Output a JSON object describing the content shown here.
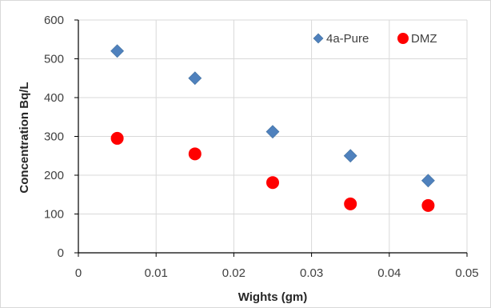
{
  "chart_data": {
    "type": "scatter",
    "xlabel": "Wights (gm)",
    "ylabel": "Concentration Bq/L",
    "xlim": [
      0,
      0.05
    ],
    "ylim": [
      0,
      600
    ],
    "xticks": [
      "0",
      "0.01",
      "0.02",
      "0.03",
      "0.04",
      "0.05"
    ],
    "yticks": [
      "0",
      "100",
      "200",
      "300",
      "400",
      "500",
      "600"
    ],
    "xtick_values": [
      0,
      0.01,
      0.02,
      0.03,
      0.04,
      0.05
    ],
    "ytick_values": [
      0,
      100,
      200,
      300,
      400,
      500,
      600
    ],
    "grid": true,
    "legend_position": "top-right",
    "series": [
      {
        "name": "4a-Pure",
        "marker": "diamond",
        "color": "#4f81bd",
        "x": [
          0.005,
          0.015,
          0.025,
          0.035,
          0.045
        ],
        "y": [
          520,
          450,
          312,
          250,
          186
        ]
      },
      {
        "name": "DMZ",
        "marker": "circle",
        "color": "#ff0000",
        "x": [
          0.005,
          0.015,
          0.025,
          0.035,
          0.045
        ],
        "y": [
          295,
          255,
          181,
          126,
          122
        ]
      }
    ]
  }
}
